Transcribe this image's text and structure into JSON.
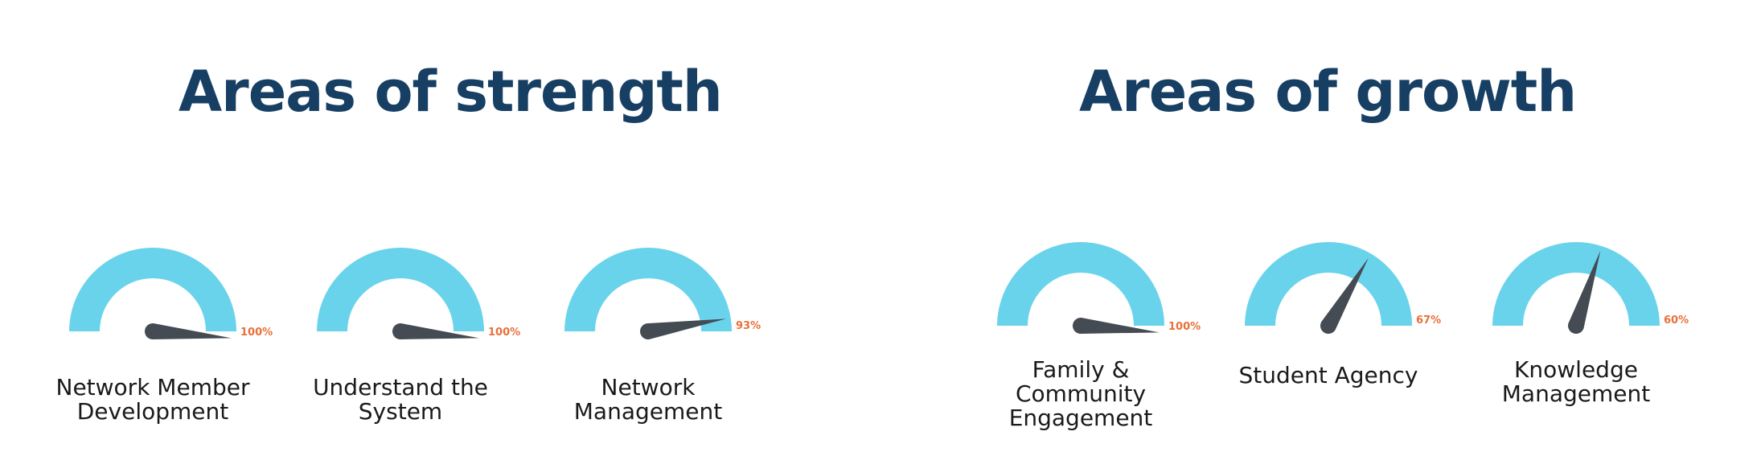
{
  "strength": {
    "title": "Areas of strength",
    "gauges": [
      {
        "label": "Network Member\nDevelopment",
        "value": 100,
        "display": "100%"
      },
      {
        "label": "Understand the\nSystem",
        "value": 100,
        "display": "100%"
      },
      {
        "label": "Network\nManagement",
        "value": 93,
        "display": "93%"
      }
    ]
  },
  "growth": {
    "title": "Areas of growth",
    "gauges": [
      {
        "label": "Family &\nCommunity\nEngagement",
        "value": 100,
        "display": "100%"
      },
      {
        "label": "Student Agency",
        "value": 67,
        "display": "67%"
      },
      {
        "label": "Knowledge\nManagement",
        "value": 60,
        "display": "60%"
      }
    ]
  },
  "colors": {
    "title": "#173F63",
    "arc": "#6AD3EC",
    "needle": "#454B52",
    "percent": "#E8703A"
  }
}
